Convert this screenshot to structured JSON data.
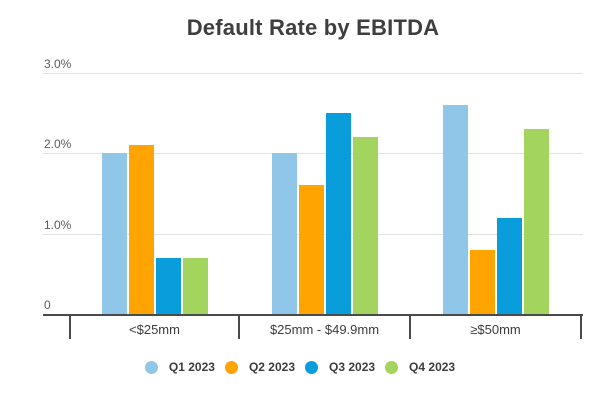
{
  "chart_data": {
    "type": "bar",
    "title": "Default Rate by EBITDA",
    "title_color": "#3E3E3E",
    "categories": [
      "<$25mm",
      "$25mm - $49.9mm",
      "≥$50mm"
    ],
    "series": [
      {
        "name": "Q1 2023",
        "color": "#90C6E8",
        "values": [
          2.0,
          2.0,
          2.6
        ]
      },
      {
        "name": "Q2 2023",
        "color": "#FFA400",
        "values": [
          2.1,
          1.6,
          0.8
        ]
      },
      {
        "name": "Q3 2023",
        "color": "#0A9DDB",
        "values": [
          0.7,
          2.5,
          1.2
        ]
      },
      {
        "name": "Q4 2023",
        "color": "#A2D45E",
        "values": [
          0.7,
          2.2,
          2.3
        ]
      }
    ],
    "xlabel": "",
    "ylabel": "",
    "ylim": [
      0,
      3.0
    ],
    "yticks": [
      {
        "value": 0,
        "label": "0"
      },
      {
        "value": 1,
        "label": "1.0%"
      },
      {
        "value": 2,
        "label": "2.0%"
      },
      {
        "value": 3,
        "label": "3.0%"
      }
    ],
    "grid": true,
    "legend_position": "bottom"
  }
}
